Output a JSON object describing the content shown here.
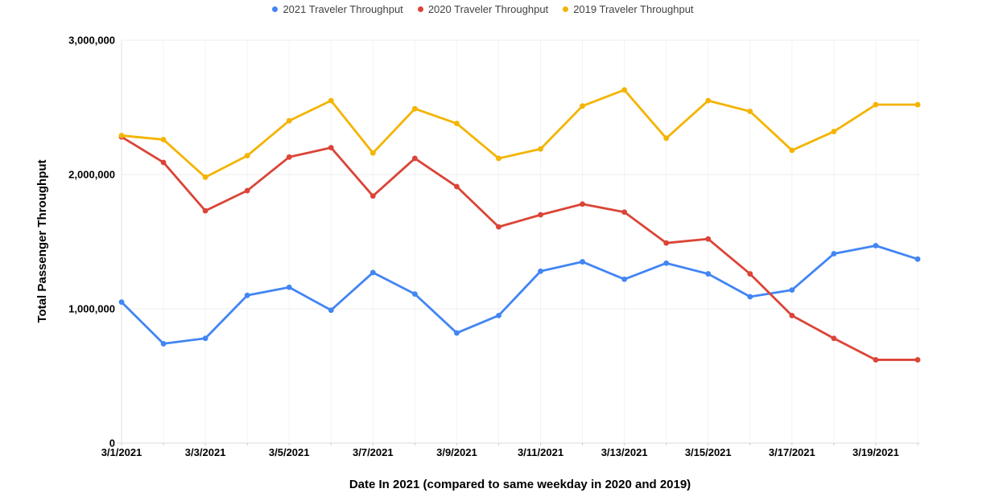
{
  "chart_data": {
    "type": "line",
    "title": "",
    "xlabel": "Date In 2021 (compared to same weekday in 2020 and 2019)",
    "ylabel": "Total Passenger Throughput",
    "x": [
      "3/1/2021",
      "3/2/2021",
      "3/3/2021",
      "3/4/2021",
      "3/5/2021",
      "3/6/2021",
      "3/7/2021",
      "3/8/2021",
      "3/9/2021",
      "3/10/2021",
      "3/11/2021",
      "3/12/2021",
      "3/13/2021",
      "3/14/2021",
      "3/15/2021",
      "3/16/2021",
      "3/17/2021",
      "3/18/2021",
      "3/19/2021",
      "3/20/2021"
    ],
    "x_tick_every": 2,
    "ylim": [
      0,
      3000000
    ],
    "y_ticks": [
      0,
      1000000,
      2000000,
      3000000
    ],
    "y_tick_labels": [
      "0",
      "1,000,000",
      "2,000,000",
      "3,000,000"
    ],
    "grid": true,
    "legend_position": "top",
    "series": [
      {
        "name": "2021 Traveler Throughput",
        "color": "#4285F4",
        "values": [
          1050000,
          740000,
          780000,
          1100000,
          1160000,
          990000,
          1270000,
          1110000,
          820000,
          950000,
          1280000,
          1350000,
          1220000,
          1340000,
          1260000,
          1090000,
          1140000,
          1410000,
          1470000,
          1370000
        ]
      },
      {
        "name": "2020 Traveler Throughput",
        "color": "#DB4437",
        "values": [
          2280000,
          2090000,
          1730000,
          1880000,
          2130000,
          2200000,
          1840000,
          2120000,
          1910000,
          1610000,
          1700000,
          1780000,
          1720000,
          1490000,
          1520000,
          1260000,
          950000,
          780000,
          620000,
          620000
        ]
      },
      {
        "name": "2019 Traveler Throughput",
        "color": "#F4B400",
        "values": [
          2290000,
          2260000,
          1980000,
          2140000,
          2400000,
          2550000,
          2160000,
          2490000,
          2380000,
          2120000,
          2190000,
          2510000,
          2630000,
          2270000,
          2550000,
          2470000,
          2180000,
          2320000,
          2520000,
          2520000
        ]
      }
    ]
  }
}
